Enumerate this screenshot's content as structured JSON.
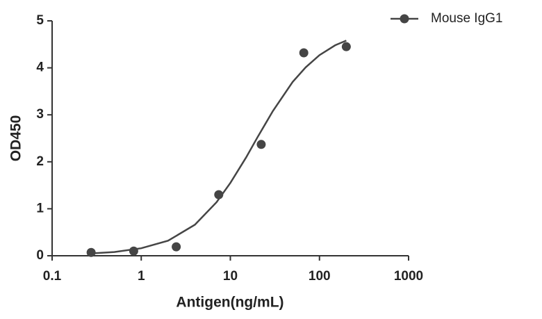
{
  "chart_data": {
    "type": "scatter",
    "x_label": "Antigen(ng/mL)",
    "y_label": "OD450",
    "log_x": true,
    "xlim": [
      0.1,
      1000
    ],
    "xticks": [
      0.1,
      1,
      10,
      100,
      1000
    ],
    "ylim": [
      0,
      5
    ],
    "yticks": [
      0,
      1,
      2,
      3,
      4,
      5
    ],
    "legend": "top-right",
    "series": [
      {
        "name": "Mouse IgG1",
        "color": "#454545",
        "x": [
          0.274,
          0.823,
          2.47,
          7.41,
          22.2,
          66.7,
          200
        ],
        "values": [
          0.07,
          0.1,
          0.19,
          1.3,
          2.37,
          4.32,
          4.45
        ]
      }
    ],
    "fit": {
      "color": "#454545",
      "x": [
        0.274,
        0.5,
        1,
        2,
        4,
        7,
        10,
        15,
        20,
        30,
        50,
        70,
        100,
        150,
        200
      ],
      "values": [
        0.05,
        0.08,
        0.16,
        0.32,
        0.66,
        1.14,
        1.55,
        2.09,
        2.51,
        3.08,
        3.7,
        4.01,
        4.27,
        4.48,
        4.58
      ]
    }
  }
}
